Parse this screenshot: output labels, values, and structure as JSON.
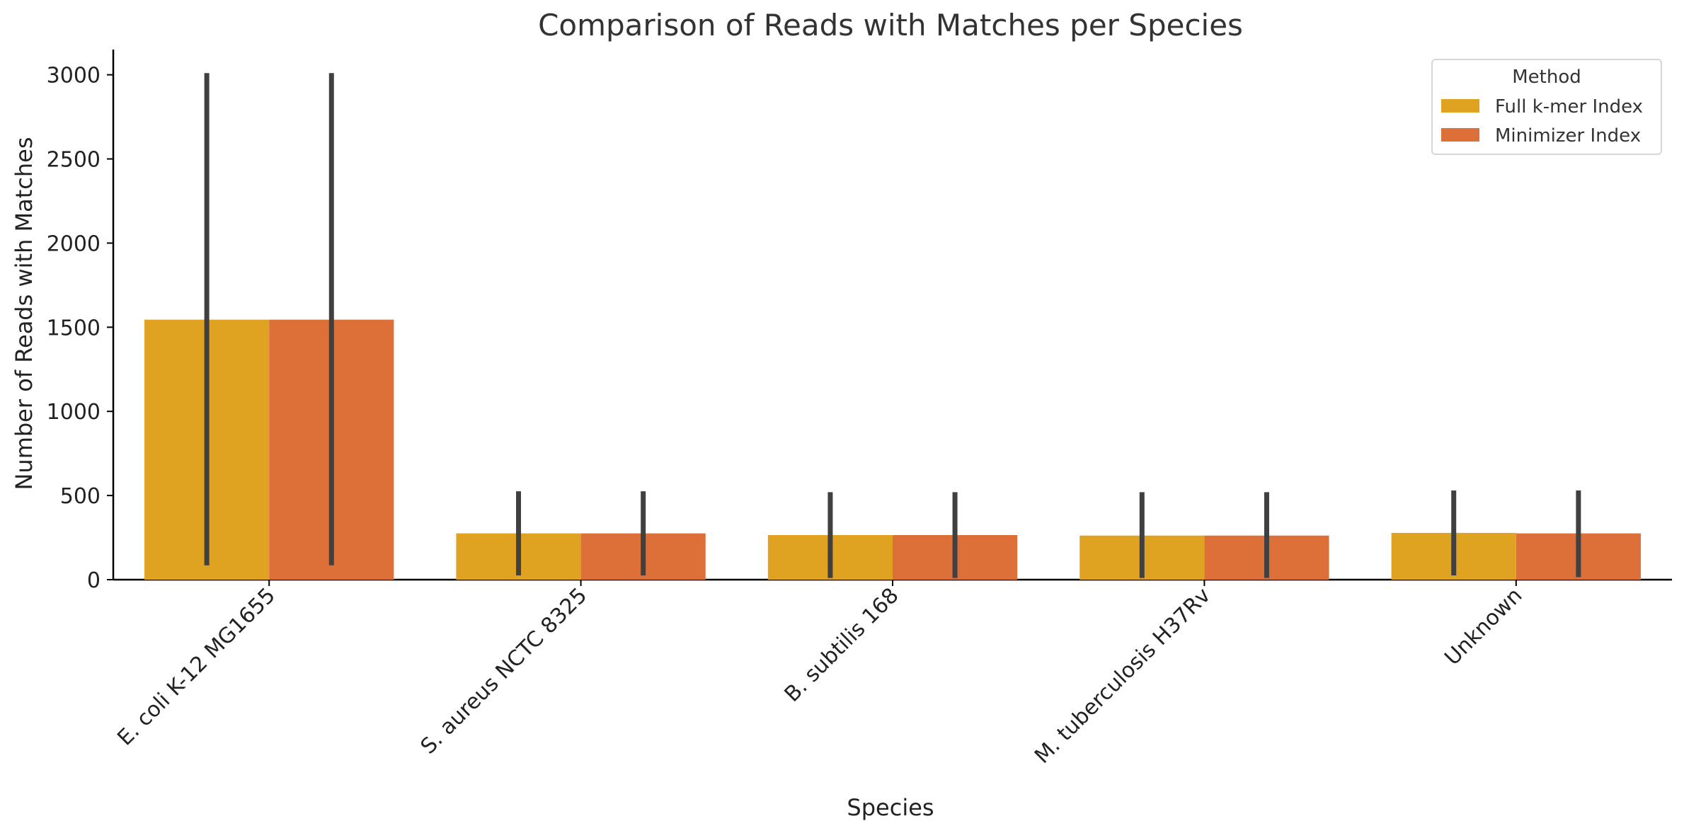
{
  "chart_data": {
    "type": "bar",
    "title": "Comparison of Reads with Matches per Species",
    "xlabel": "Species",
    "ylabel": "Number of Reads with Matches",
    "categories": [
      "E. coli K-12 MG1655",
      "S. aureus NCTC 8325",
      "B. subtilis 168",
      "M. tuberculosis H37Rv",
      "Unknown"
    ],
    "series": [
      {
        "name": "Full k-mer Index",
        "color": "#dfa221",
        "values": [
          1545,
          275,
          265,
          262,
          278
        ],
        "error_low": [
          85,
          25,
          10,
          10,
          25
        ],
        "error_high": [
          3010,
          525,
          520,
          520,
          530
        ]
      },
      {
        "name": "Minimizer Index",
        "color": "#dd7039",
        "values": [
          1545,
          275,
          265,
          262,
          275
        ],
        "error_low": [
          85,
          25,
          10,
          10,
          15
        ],
        "error_high": [
          3010,
          525,
          520,
          520,
          530
        ]
      }
    ],
    "ylim": [
      0,
      3150
    ],
    "yticks": [
      0,
      500,
      1000,
      1500,
      2000,
      2500,
      3000
    ],
    "grid": false,
    "legend": {
      "title": "Method",
      "placement": "top-right"
    },
    "error_bar_color": "#404040"
  }
}
